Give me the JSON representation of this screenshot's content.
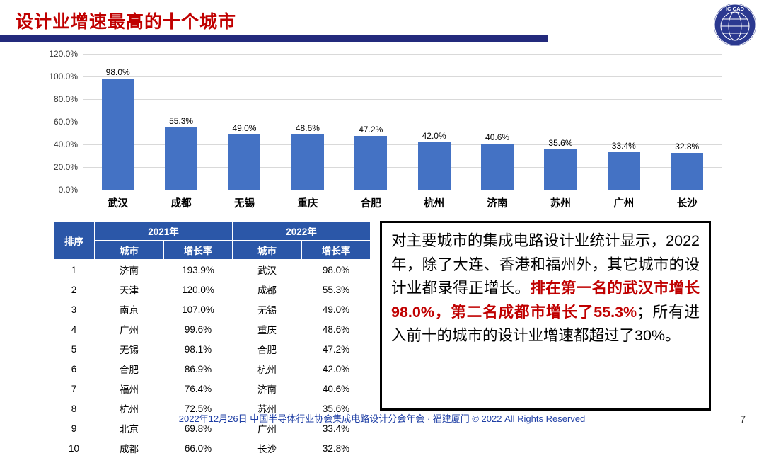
{
  "header": {
    "title": "设计业增速最高的十个城市",
    "logo_text": "IC CAD"
  },
  "chart_data": {
    "type": "bar",
    "title": "",
    "xlabel": "",
    "ylabel": "",
    "categories": [
      "武汉",
      "成都",
      "无锡",
      "重庆",
      "合肥",
      "杭州",
      "济南",
      "苏州",
      "广州",
      "长沙"
    ],
    "values": [
      98.0,
      55.3,
      49.0,
      48.6,
      47.2,
      42.0,
      40.6,
      35.6,
      33.4,
      32.8
    ],
    "value_labels": [
      "98.0%",
      "55.3%",
      "49.0%",
      "48.6%",
      "47.2%",
      "42.0%",
      "40.6%",
      "35.6%",
      "33.4%",
      "32.8%"
    ],
    "ylim": [
      0,
      120
    ],
    "ytick_labels": [
      "120.0%",
      "100.0%",
      "80.0%",
      "60.0%",
      "40.0%",
      "20.0%",
      "0.0%"
    ],
    "grid": "horizontal",
    "legend": "none",
    "bar_color": "#4472C4"
  },
  "table": {
    "header": {
      "rank": "排序",
      "y2021": "2021年",
      "y2022": "2022年",
      "city": "城市",
      "growth": "增长率"
    },
    "rows": [
      {
        "rank": "1",
        "city2021": "济南",
        "growth2021": "193.9%",
        "city2022": "武汉",
        "growth2022": "98.0%"
      },
      {
        "rank": "2",
        "city2021": "天津",
        "growth2021": "120.0%",
        "city2022": "成都",
        "growth2022": "55.3%"
      },
      {
        "rank": "3",
        "city2021": "南京",
        "growth2021": "107.0%",
        "city2022": "无锡",
        "growth2022": "49.0%"
      },
      {
        "rank": "4",
        "city2021": "广州",
        "growth2021": "99.6%",
        "city2022": "重庆",
        "growth2022": "48.6%"
      },
      {
        "rank": "5",
        "city2021": "无锡",
        "growth2021": "98.1%",
        "city2022": "合肥",
        "growth2022": "47.2%"
      },
      {
        "rank": "6",
        "city2021": "合肥",
        "growth2021": "86.9%",
        "city2022": "杭州",
        "growth2022": "42.0%"
      },
      {
        "rank": "7",
        "city2021": "福州",
        "growth2021": "76.4%",
        "city2022": "济南",
        "growth2022": "40.6%"
      },
      {
        "rank": "8",
        "city2021": "杭州",
        "growth2021": "72.5%",
        "city2022": "苏州",
        "growth2022": "35.6%"
      },
      {
        "rank": "9",
        "city2021": "北京",
        "growth2021": "69.8%",
        "city2022": "广州",
        "growth2022": "33.4%"
      },
      {
        "rank": "10",
        "city2021": "成都",
        "growth2021": "66.0%",
        "city2022": "长沙",
        "growth2022": "32.8%"
      }
    ]
  },
  "note": {
    "part1": "对主要城市的集成电路设计业统计显示，2022年，除了大连、香港和福州外，其它城市的设计业都录得正增长。",
    "highlight": "排在第一名的武汉市增长98.0%，第二名成都市增长了55.3%",
    "part2": "；所有进入前十的城市的设计业增速都超过了30%。"
  },
  "footer": {
    "text": "2022年12月26日 中国半导体行业协会集成电路设计分会年会 · 福建厦门 © 2022 All Rights Reserved",
    "page_number": "7"
  },
  "colors": {
    "title_red": "#C00000",
    "accent_navy": "#232A7C",
    "table_header_blue": "#2B57A8",
    "footer_blue": "#1F3FA5",
    "bar_blue": "#4472C4"
  }
}
